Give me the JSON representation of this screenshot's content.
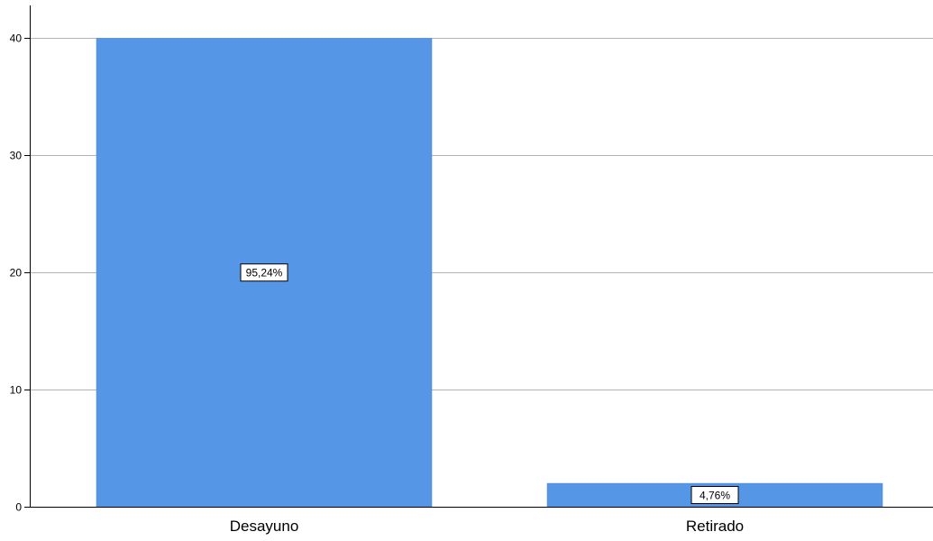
{
  "chart_data": {
    "type": "bar",
    "categories": [
      "Desayuno",
      "Retirado"
    ],
    "values": [
      40,
      2
    ],
    "data_labels": [
      "95,24%",
      "4,76%"
    ],
    "yticks": [
      "0",
      "10",
      "20",
      "30",
      "40"
    ],
    "ylim": [
      0,
      42.5
    ],
    "grid": true,
    "bar_color": "#5596e6",
    "grid_color": "#b4b4b4",
    "axis_color": "#000000"
  }
}
